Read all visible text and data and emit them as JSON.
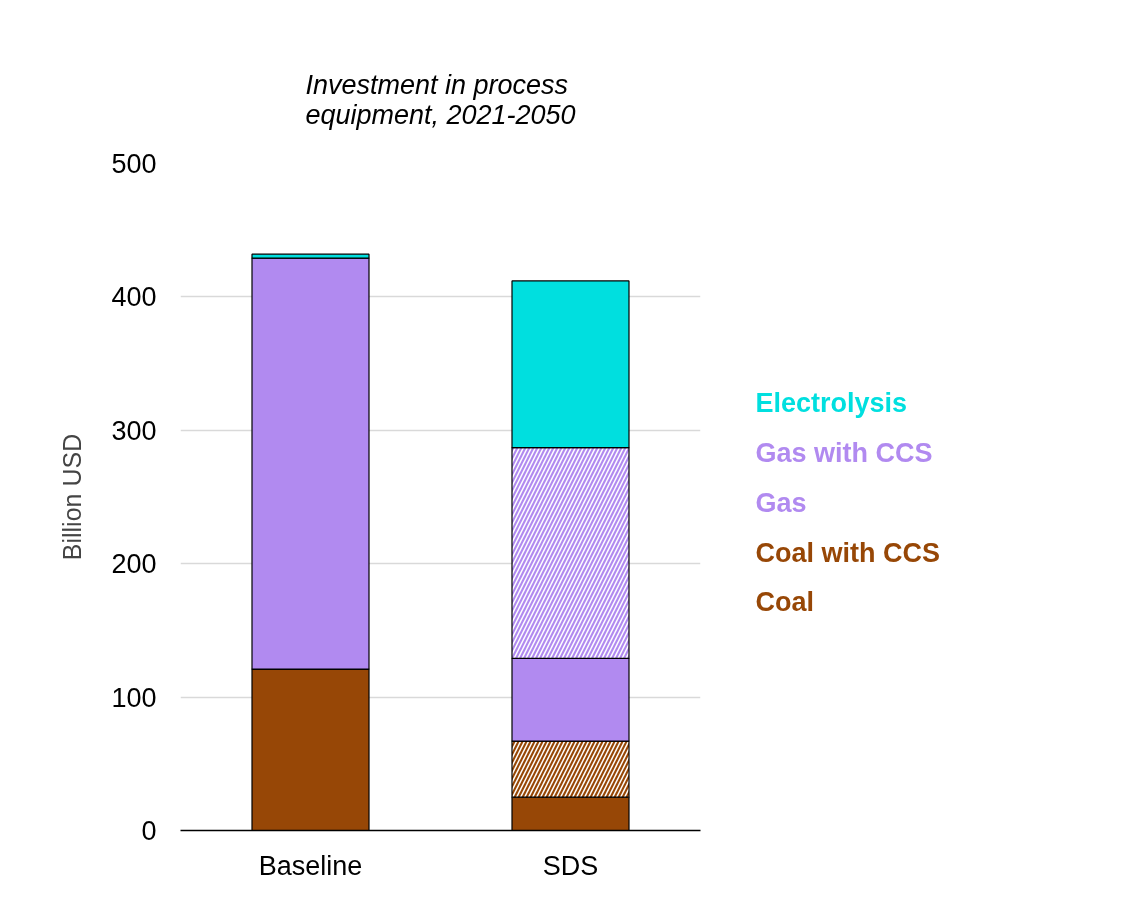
{
  "chart_data": {
    "type": "bar",
    "title": "Investment in process equipment, 2021-2050",
    "ylabel": "Billion USD",
    "categories": [
      "Baseline",
      "SDS"
    ],
    "stacked": true,
    "ylim": [
      0,
      500
    ],
    "yticks": [
      0,
      100,
      200,
      300,
      400,
      500
    ],
    "grid": "y",
    "legend": "right",
    "series": [
      {
        "name": "Coal",
        "color": "#974706",
        "values": [
          121,
          25
        ]
      },
      {
        "name": "Coal with CCS",
        "color": "#974706",
        "values": [
          0,
          42
        ]
      },
      {
        "name": "Gas",
        "color": "#b18af0",
        "values": [
          308,
          62
        ]
      },
      {
        "name": "Gas with CCS",
        "color": "#b18af0",
        "values": [
          0,
          158
        ]
      },
      {
        "name": "Electrolysis",
        "color": "#00dfdf",
        "values": [
          3,
          125
        ]
      }
    ]
  }
}
